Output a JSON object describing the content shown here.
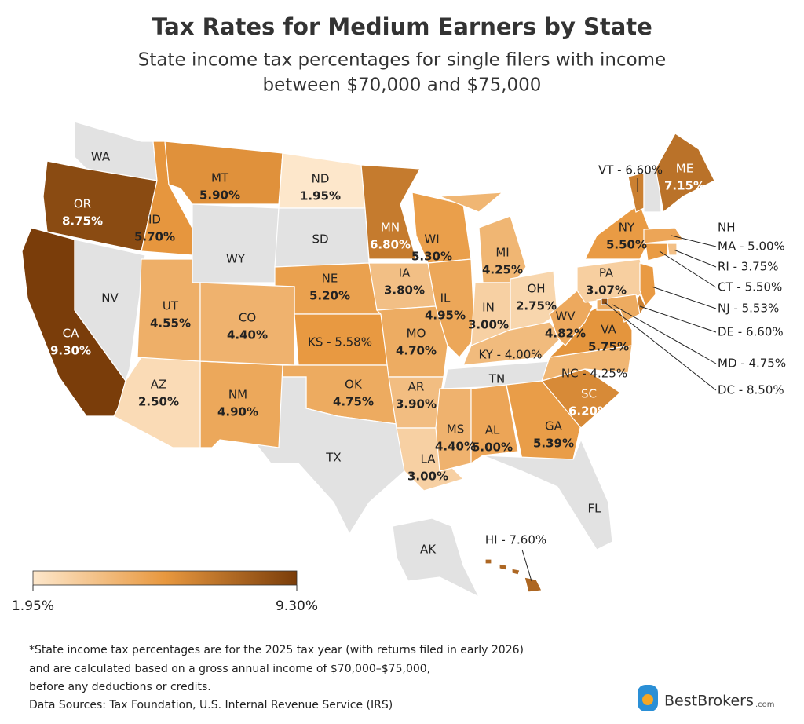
{
  "title": "Tax Rates for Medium Earners by State",
  "subtitle": [
    "State income tax percentages for single filers with income",
    "between $70,000 and $75,000"
  ],
  "color_scale": [
    "#fde7cb",
    "#e8983f",
    "#7a3d0a"
  ],
  "no_tax_color": "#e2e2e2",
  "states": [
    {
      "abbr": "WA"
    },
    {
      "abbr": "OR",
      "rate_text": "8.75%",
      "value": 8.75
    },
    {
      "abbr": "CA",
      "rate_text": "9.30%",
      "value": 9.3
    },
    {
      "abbr": "NV"
    },
    {
      "abbr": "ID",
      "rate_text": "5.70%",
      "value": 5.7
    },
    {
      "abbr": "MT",
      "rate_text": "5.90%",
      "value": 5.9
    },
    {
      "abbr": "WY"
    },
    {
      "abbr": "ND",
      "rate_text": "1.95%",
      "value": 1.95
    },
    {
      "abbr": "SD"
    },
    {
      "abbr": "NE",
      "rate_text": "5.20%",
      "value": 5.2
    },
    {
      "label": "KS - 5.58%",
      "value": 5.58
    },
    {
      "abbr": "OK",
      "rate_text": "4.75%",
      "value": 4.75
    },
    {
      "abbr": "TX"
    },
    {
      "abbr": "NM",
      "rate_text": "4.90%",
      "value": 4.9
    },
    {
      "abbr": "AZ",
      "rate_text": "2.50%",
      "value": 2.5
    },
    {
      "abbr": "UT",
      "rate_text": "4.55%",
      "value": 4.55
    },
    {
      "abbr": "CO",
      "rate_text": "4.40%",
      "value": 4.4
    },
    {
      "abbr": "MN",
      "rate_text": "6.80%",
      "value": 6.8
    },
    {
      "abbr": "IA",
      "rate_text": "3.80%",
      "value": 3.8
    },
    {
      "abbr": "MO",
      "rate_text": "4.70%",
      "value": 4.7
    },
    {
      "abbr": "AR",
      "rate_text": "3.90%",
      "value": 3.9
    },
    {
      "abbr": "LA",
      "rate_text": "3.00%",
      "value": 3.0
    },
    {
      "abbr": "WI",
      "rate_text": "5.30%",
      "value": 5.3
    },
    {
      "abbr": "IL",
      "rate_text": "4.95%",
      "value": 4.95
    },
    {
      "abbr": "MI",
      "rate_text": "4.25%",
      "value": 4.25
    },
    {
      "abbr": "IN",
      "rate_text": "3.00%",
      "value": 3.0
    },
    {
      "abbr": "OH",
      "rate_text": "2.75%",
      "value": 2.75
    },
    {
      "label": "KY - 4.00%",
      "value": 4.0
    },
    {
      "abbr": "TN"
    },
    {
      "abbr": "MS",
      "rate_text": "4.40%",
      "value": 4.4
    },
    {
      "abbr": "AL",
      "rate_text": "5.00%",
      "value": 5.0
    },
    {
      "abbr": "GA",
      "rate_text": "5.39%",
      "value": 5.39
    },
    {
      "abbr": "FL"
    },
    {
      "abbr": "SC",
      "rate_text": "6.20%",
      "value": 6.2
    },
    {
      "label": "NC - 4.25%",
      "value": 4.25
    },
    {
      "abbr": "VA",
      "rate_text": "5.75%",
      "value": 5.75
    },
    {
      "abbr": "WV",
      "rate_text": "4.82%",
      "value": 4.82
    },
    {
      "abbr": "PA",
      "rate_text": "3.07%",
      "value": 3.07
    },
    {
      "abbr": "NY",
      "rate_text": "5.50%",
      "value": 5.5
    },
    {
      "label": "VT - 6.60%",
      "value": 6.6
    },
    {
      "abbr": "NH"
    },
    {
      "abbr": "ME",
      "rate_text": "7.15%",
      "value": 7.15
    },
    {
      "label": "MA - 5.00%",
      "value": 5.0
    },
    {
      "label": "RI - 3.75%",
      "value": 3.75
    },
    {
      "label": "CT - 5.50%",
      "value": 5.5
    },
    {
      "label": "NJ - 5.53%",
      "value": 5.53
    },
    {
      "label": "DE - 6.60%",
      "value": 6.6
    },
    {
      "label": "MD - 4.75%",
      "value": 4.75
    },
    {
      "label": "DC - 8.50%",
      "value": 8.5
    },
    {
      "abbr": "AK"
    },
    {
      "label": "HI - 7.60%",
      "value": 7.6
    }
  ],
  "legend": {
    "min": {
      "value": 1.95,
      "label": "1.95%"
    },
    "max": {
      "value": 9.3,
      "label": "9.30%"
    }
  },
  "footnote": [
    "*State income tax percentages are for the 2025 tax year (with returns filed in early 2026)",
    "and are calculated based on a gross annual income of $70,000–$75,000,",
    "before any deductions or credits.",
    "Data Sources: Tax Foundation, U.S. Internal Revenue Service (IRS)"
  ],
  "logo": {
    "name": "BestBrokers",
    "suffix": ".com"
  }
}
